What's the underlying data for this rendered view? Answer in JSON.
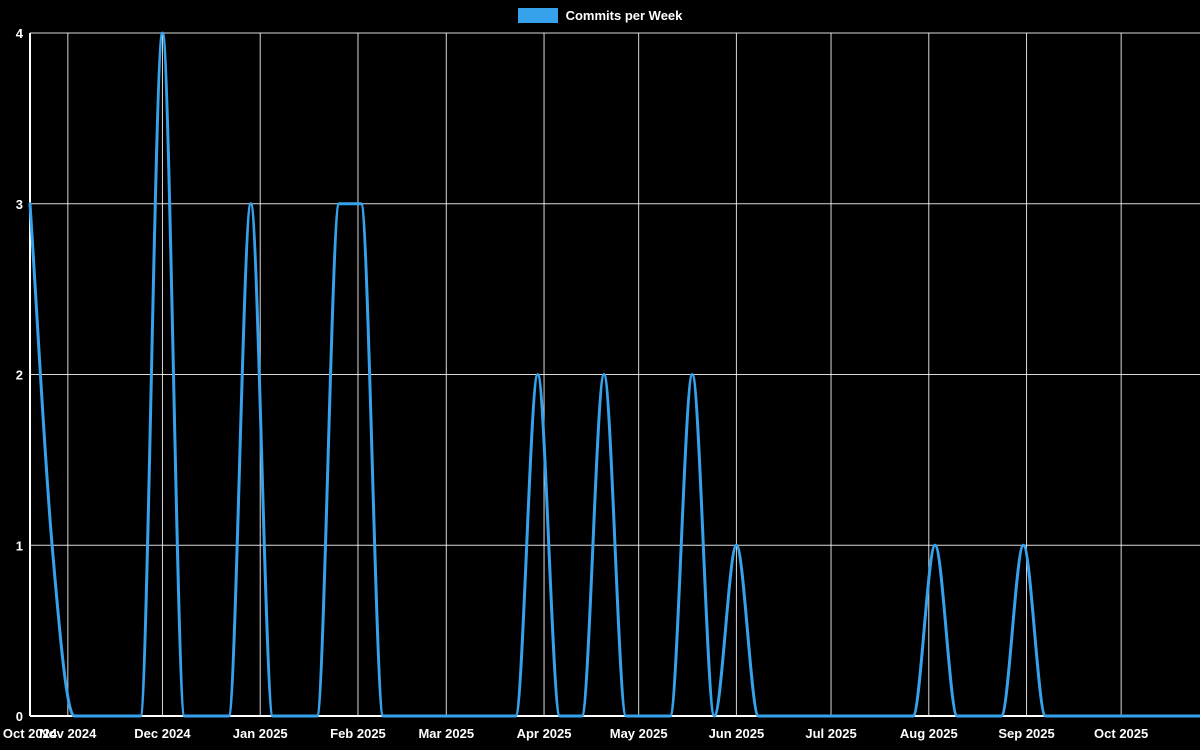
{
  "chart_data": {
    "type": "line",
    "title": "",
    "legend_label": "Commits per Week",
    "legend_position": "top-center",
    "background_color": "#000000",
    "grid_color": "#ffffff",
    "axis_color": "#ffffff",
    "text_color": "#ffffff",
    "x_axis": {
      "unit": "time",
      "point_interval_days": 7,
      "total_days": 371,
      "month_ticks": [
        {
          "label": "Oct 2024",
          "day": 0
        },
        {
          "label": "Nov 2024",
          "day": 12
        },
        {
          "label": "Dec 2024",
          "day": 42
        },
        {
          "label": "Jan 2025",
          "day": 73
        },
        {
          "label": "Feb 2025",
          "day": 104
        },
        {
          "label": "Mar 2025",
          "day": 132
        },
        {
          "label": "Apr 2025",
          "day": 163
        },
        {
          "label": "May 2025",
          "day": 193
        },
        {
          "label": "Jun 2025",
          "day": 224
        },
        {
          "label": "Jul 2025",
          "day": 254
        },
        {
          "label": "Aug 2025",
          "day": 285
        },
        {
          "label": "Sep 2025",
          "day": 316
        },
        {
          "label": "Oct 2025",
          "day": 346
        }
      ]
    },
    "y_axis": {
      "min": 0,
      "max": 4,
      "ticks": [
        0,
        1,
        2,
        3,
        4
      ]
    },
    "series": [
      {
        "name": "Commits per Week",
        "color": "#36a2eb",
        "line_width": 3,
        "weekly_values": [
          3,
          1,
          0,
          0,
          0,
          0,
          4,
          0,
          0,
          0,
          3,
          0,
          0,
          0,
          3,
          3,
          0,
          0,
          0,
          0,
          0,
          0,
          0,
          2,
          0,
          0,
          2,
          0,
          0,
          0,
          2,
          0,
          1,
          0,
          0,
          0,
          0,
          0,
          0,
          0,
          0,
          1,
          0,
          0,
          0,
          1,
          0,
          0,
          0,
          0,
          0,
          0,
          0,
          0
        ]
      }
    ]
  }
}
